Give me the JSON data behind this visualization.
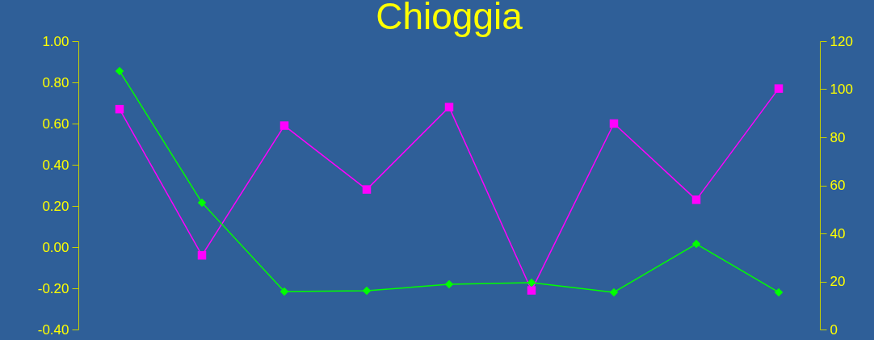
{
  "chart_data": {
    "type": "line",
    "title": "Chioggia",
    "categories": [
      null,
      null,
      null,
      null,
      null,
      null,
      null,
      null,
      null
    ],
    "series": [
      {
        "color": "#ff00ff",
        "marker": "square",
        "values": [
          0.67,
          -0.04,
          0.59,
          0.28,
          0.68,
          -0.21,
          0.6,
          0.23,
          0.77
        ]
      },
      {
        "color": "#00ff00",
        "marker": "diamond",
        "axis": "y2",
        "values": [
          107.6,
          52.8,
          15.8,
          16.1,
          18.8,
          19.5,
          15.5,
          35.6,
          15.5
        ]
      }
    ],
    "ylim": [
      -0.4,
      1.0
    ],
    "yticks": [
      {
        "value": -0.4,
        "label": "-0.40"
      },
      {
        "value": -0.2,
        "label": "-0.20"
      },
      {
        "value": 0,
        "label": "0.00"
      },
      {
        "value": 0.2,
        "label": "0.20"
      },
      {
        "value": 0.4,
        "label": "0.40"
      },
      {
        "value": 0.6,
        "label": "0.60"
      },
      {
        "value": 0.8,
        "label": "0.80"
      },
      {
        "value": 1.0,
        "label": "1.00"
      }
    ],
    "y2lim": [
      0,
      120
    ],
    "y2ticks": [
      0,
      20,
      40,
      60,
      80,
      100,
      120
    ],
    "grid": false,
    "line_style": "solid"
  }
}
